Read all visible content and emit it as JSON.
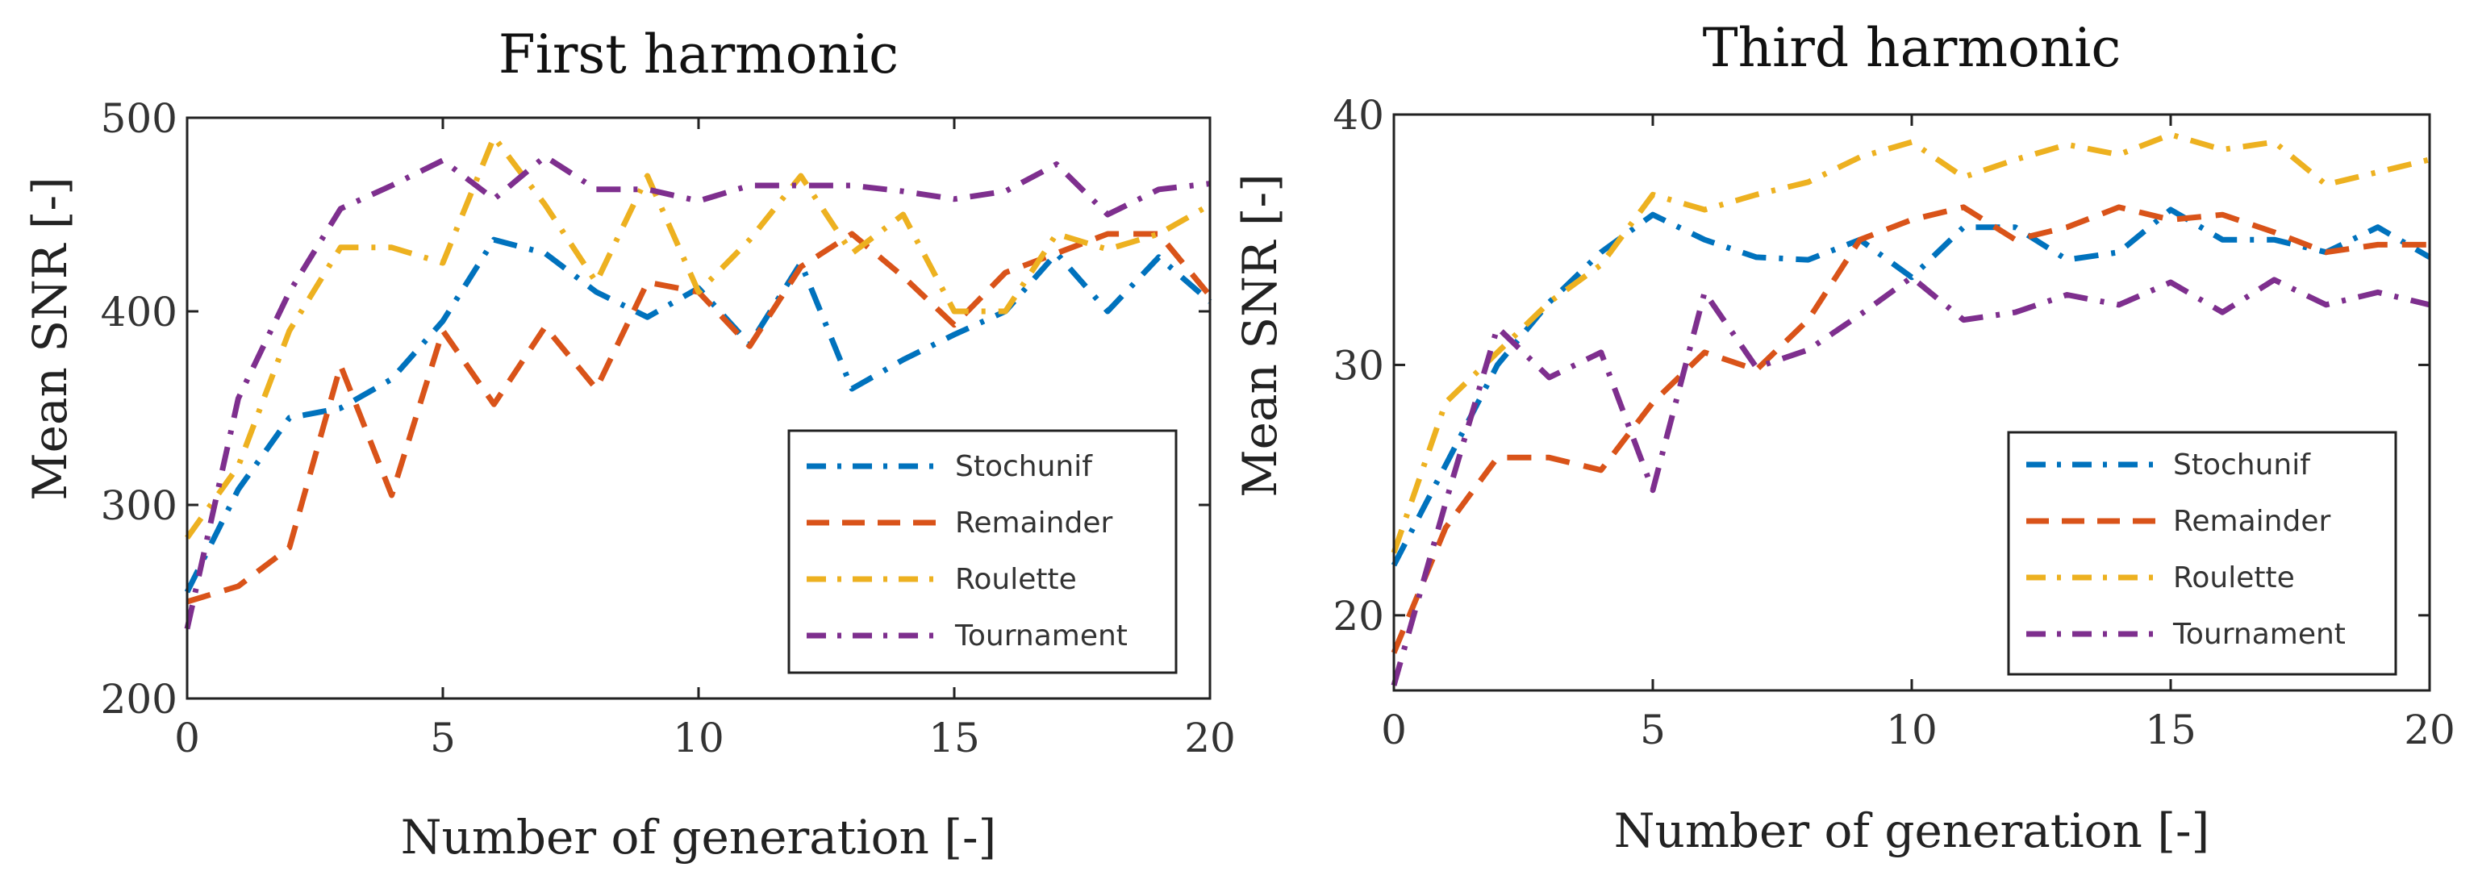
{
  "chart_data": [
    {
      "type": "line",
      "title": "First harmonic",
      "xlabel": "Number of generation [-]",
      "ylabel": "Mean SNR [-]",
      "xlim": [
        0,
        20
      ],
      "ylim": [
        200,
        500
      ],
      "xticks": [
        0,
        5,
        10,
        15,
        20
      ],
      "yticks": [
        200,
        300,
        400,
        500
      ],
      "legend": "bottom-right",
      "x": [
        0,
        1,
        2,
        3,
        4,
        5,
        6,
        7,
        8,
        9,
        10,
        11,
        12,
        13,
        14,
        15,
        16,
        17,
        18,
        19,
        20
      ],
      "series": [
        {
          "name": "Stochunif",
          "color": "#0072BD",
          "values": [
            255,
            308,
            345,
            350,
            365,
            395,
            437,
            430,
            410,
            397,
            412,
            383,
            425,
            360,
            375,
            388,
            400,
            430,
            400,
            428,
            405
          ]
        },
        {
          "name": "Remainder",
          "color": "#D95319",
          "values": [
            250,
            258,
            278,
            372,
            305,
            390,
            352,
            392,
            360,
            415,
            410,
            382,
            423,
            440,
            418,
            393,
            420,
            430,
            440,
            440,
            408
          ]
        },
        {
          "name": "Roulette",
          "color": "#EDB120",
          "values": [
            283,
            320,
            390,
            433,
            433,
            425,
            490,
            455,
            415,
            470,
            410,
            437,
            470,
            430,
            450,
            400,
            400,
            440,
            432,
            440,
            455
          ]
        },
        {
          "name": "Tournament",
          "color": "#7E2F8E",
          "values": [
            236,
            355,
            410,
            453,
            465,
            478,
            458,
            480,
            463,
            463,
            457,
            465,
            465,
            465,
            462,
            458,
            462,
            476,
            450,
            463,
            466
          ]
        }
      ]
    },
    {
      "type": "line",
      "title": "Third harmonic",
      "xlabel": "Number of generation [-]",
      "ylabel": "Mean SNR [-]",
      "xlim": [
        0,
        20
      ],
      "ylim": [
        17,
        40
      ],
      "xticks": [
        0,
        5,
        10,
        15,
        20
      ],
      "yticks": [
        20,
        30,
        40
      ],
      "legend": "bottom-right",
      "x": [
        0,
        1,
        2,
        3,
        4,
        5,
        6,
        7,
        8,
        9,
        10,
        11,
        12,
        13,
        14,
        15,
        16,
        17,
        18,
        19,
        20
      ],
      "series": [
        {
          "name": "Stochunif",
          "color": "#0072BD",
          "values": [
            22,
            26,
            30,
            32.5,
            34.5,
            36,
            35,
            34.3,
            34.2,
            35,
            33.5,
            35.5,
            35.5,
            34.2,
            34.5,
            36.2,
            35,
            35,
            34.5,
            35.5,
            34.3
          ]
        },
        {
          "name": "Remainder",
          "color": "#D95319",
          "values": [
            18.5,
            23.5,
            26.3,
            26.3,
            25.8,
            28.5,
            30.5,
            29.8,
            31.8,
            35,
            35.8,
            36.3,
            35,
            35.5,
            36.3,
            35.8,
            36,
            35.3,
            34.5,
            34.8,
            34.8
          ]
        },
        {
          "name": "Roulette",
          "color": "#EDB120",
          "values": [
            22.5,
            28.5,
            30.5,
            32.5,
            34,
            36.8,
            36.2,
            36.8,
            37.3,
            38.3,
            38.9,
            37.5,
            38.2,
            38.8,
            38.4,
            39.2,
            38.6,
            38.9,
            37.2,
            37.7,
            38.2
          ]
        },
        {
          "name": "Tournament",
          "color": "#7E2F8E",
          "values": [
            17.2,
            24.5,
            31.5,
            29.5,
            30.5,
            25,
            32.9,
            29.9,
            30.6,
            32,
            33.5,
            31.8,
            32.1,
            32.8,
            32.4,
            33.3,
            32.1,
            33.4,
            32.4,
            32.9,
            32.4
          ]
        }
      ]
    }
  ]
}
